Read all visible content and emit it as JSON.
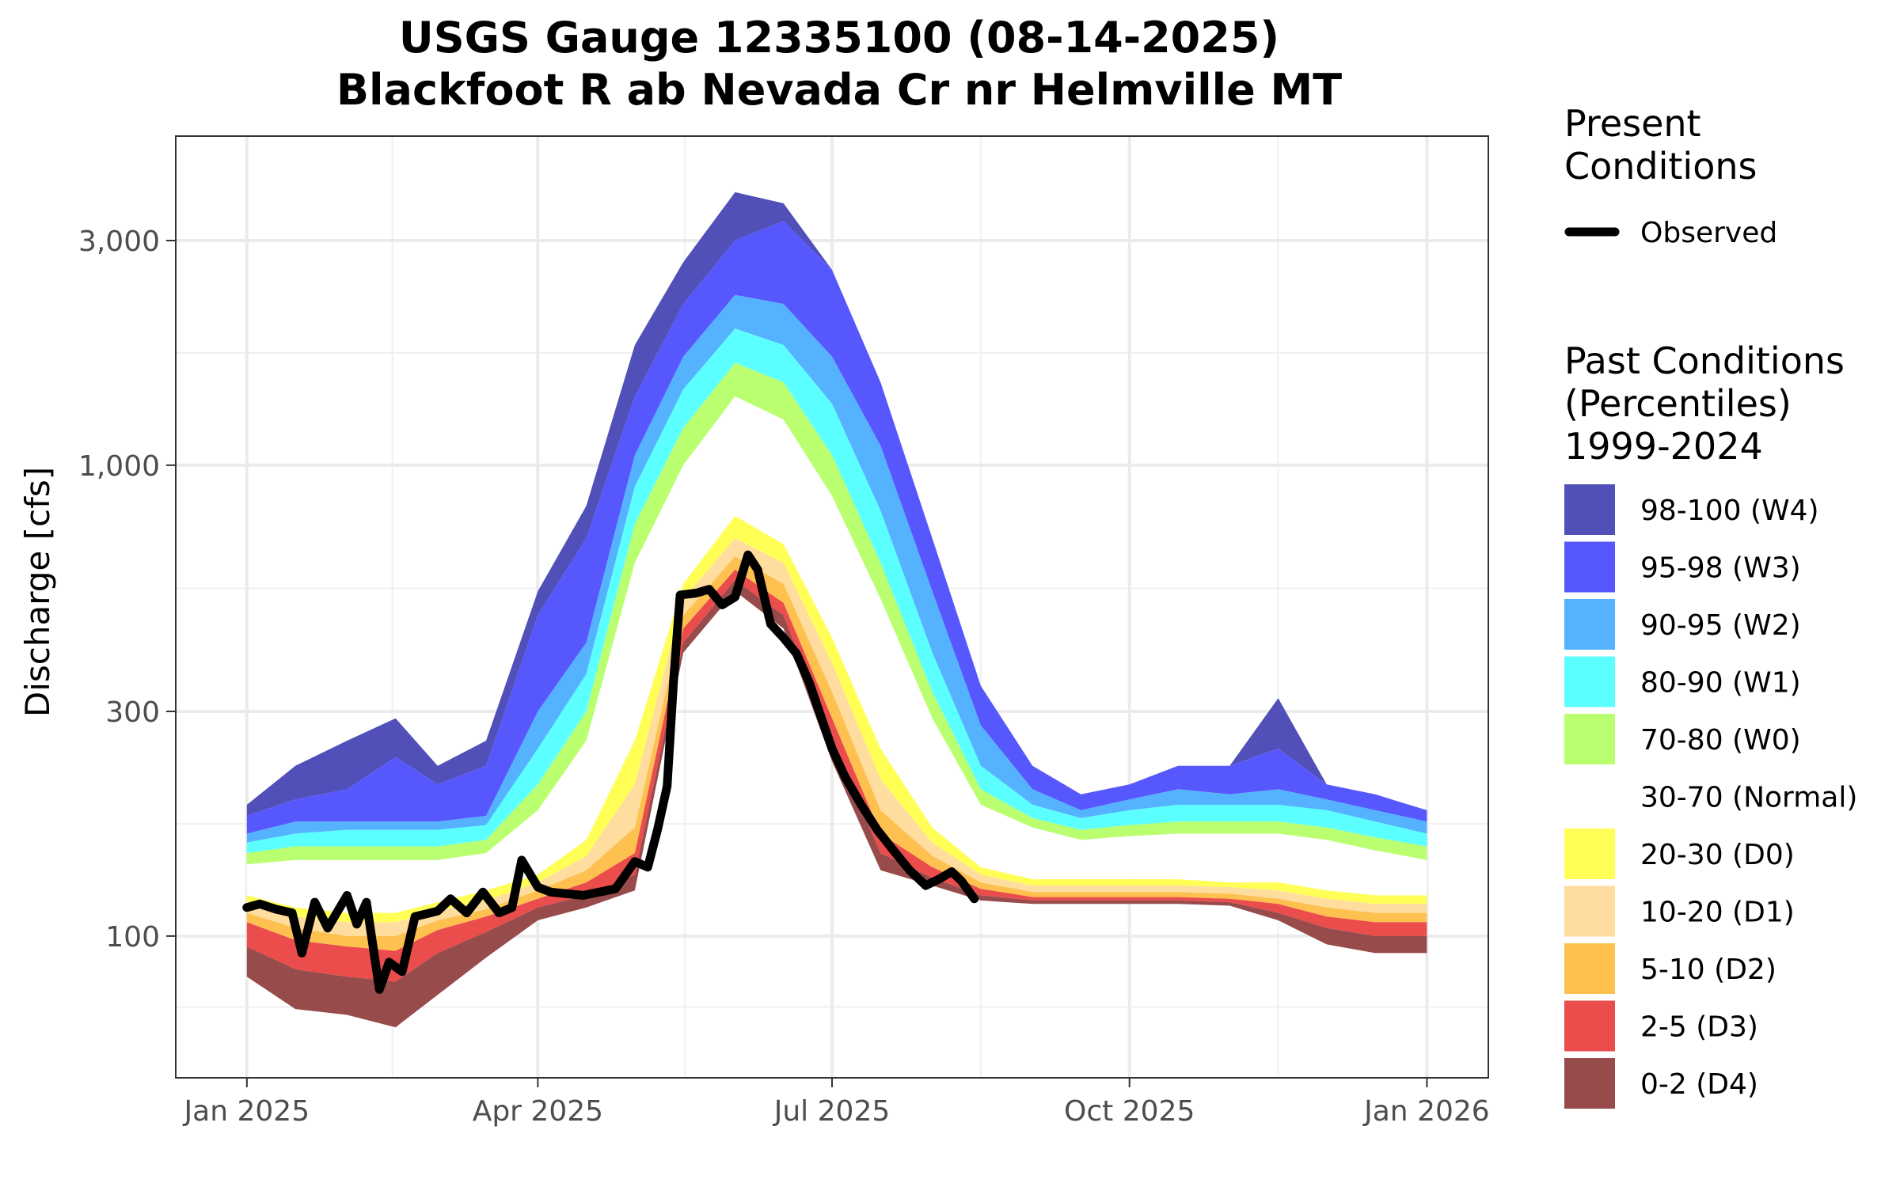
{
  "chart_data": {
    "type": "area",
    "title": "USGS Gauge 12335100 (08-14-2025)",
    "subtitle": "Blackfoot R ab Nevada Cr nr Helmville MT",
    "ylabel": "Discharge [cfs]",
    "xlabel": "",
    "y_scale": "log",
    "ylim": [
      50,
      5000
    ],
    "xlim": [
      "2024-12-10",
      "2026-01-20"
    ],
    "grid": true,
    "x_ticks": [
      {
        "date": "2025-01-01",
        "label": "Jan 2025"
      },
      {
        "date": "2025-04-01",
        "label": "Apr 2025"
      },
      {
        "date": "2025-07-01",
        "label": "Jul 2025"
      },
      {
        "date": "2025-10-01",
        "label": "Oct 2025"
      },
      {
        "date": "2026-01-01",
        "label": "Jan 2026"
      }
    ],
    "y_ticks": [
      {
        "value": 100,
        "label": "100"
      },
      {
        "value": 300,
        "label": "300"
      },
      {
        "value": 1000,
        "label": "1,000"
      },
      {
        "value": 3000,
        "label": "3,000"
      }
    ],
    "legend_placement": "right",
    "legend_present_title": "Present Conditions",
    "legend_past_title": "Past Conditions (Percentiles) 1999-2024",
    "observed": {
      "name": "Observed",
      "color": "#000000",
      "points": [
        [
          "2025-01-01",
          115
        ],
        [
          "2025-01-05",
          117
        ],
        [
          "2025-01-10",
          114
        ],
        [
          "2025-01-15",
          112
        ],
        [
          "2025-01-18",
          92
        ],
        [
          "2025-01-22",
          118
        ],
        [
          "2025-01-26",
          104
        ],
        [
          "2025-02-01",
          122
        ],
        [
          "2025-02-04",
          106
        ],
        [
          "2025-02-07",
          118
        ],
        [
          "2025-02-11",
          77
        ],
        [
          "2025-02-14",
          88
        ],
        [
          "2025-02-18",
          84
        ],
        [
          "2025-02-22",
          110
        ],
        [
          "2025-03-01",
          113
        ],
        [
          "2025-03-05",
          120
        ],
        [
          "2025-03-10",
          112
        ],
        [
          "2025-03-15",
          124
        ],
        [
          "2025-03-20",
          112
        ],
        [
          "2025-03-24",
          115
        ],
        [
          "2025-03-27",
          145
        ],
        [
          "2025-04-01",
          127
        ],
        [
          "2025-04-05",
          124
        ],
        [
          "2025-04-10",
          123
        ],
        [
          "2025-04-15",
          122
        ],
        [
          "2025-04-20",
          124
        ],
        [
          "2025-04-25",
          126
        ],
        [
          "2025-05-01",
          144
        ],
        [
          "2025-05-05",
          140
        ],
        [
          "2025-05-08",
          168
        ],
        [
          "2025-05-11",
          208
        ],
        [
          "2025-05-13",
          350
        ],
        [
          "2025-05-15",
          530
        ],
        [
          "2025-05-20",
          535
        ],
        [
          "2025-05-24",
          545
        ],
        [
          "2025-05-28",
          505
        ],
        [
          "2025-06-01",
          525
        ],
        [
          "2025-06-05",
          645
        ],
        [
          "2025-06-08",
          600
        ],
        [
          "2025-06-12",
          460
        ],
        [
          "2025-06-16",
          430
        ],
        [
          "2025-06-20",
          398
        ],
        [
          "2025-06-24",
          345
        ],
        [
          "2025-06-27",
          300
        ],
        [
          "2025-07-01",
          250
        ],
        [
          "2025-07-05",
          218
        ],
        [
          "2025-07-10",
          190
        ],
        [
          "2025-07-15",
          168
        ],
        [
          "2025-07-20",
          152
        ],
        [
          "2025-07-25",
          138
        ],
        [
          "2025-07-30",
          128
        ],
        [
          "2025-08-03",
          132
        ],
        [
          "2025-08-07",
          137
        ],
        [
          "2025-08-10",
          131
        ],
        [
          "2025-08-14",
          120
        ]
      ]
    },
    "percentile_band_dates": [
      "2025-01-01",
      "2025-01-16",
      "2025-02-01",
      "2025-02-16",
      "2025-03-01",
      "2025-03-16",
      "2025-04-01",
      "2025-04-16",
      "2025-05-01",
      "2025-05-16",
      "2025-06-01",
      "2025-06-16",
      "2025-07-01",
      "2025-07-16",
      "2025-08-01",
      "2025-08-16",
      "2025-09-01",
      "2025-09-16",
      "2025-10-01",
      "2025-10-16",
      "2025-11-01",
      "2025-11-16",
      "2025-12-01",
      "2025-12-16",
      "2026-01-01"
    ],
    "percentile_bands": [
      {
        "label": "98-100 (W4)",
        "color": "#5050B8",
        "lower": [
          180,
          195,
          205,
          240,
          210,
          230,
          480,
          700,
          1400,
          2200,
          3000,
          3300,
          2600,
          1500,
          700,
          340,
          230,
          200,
          210,
          230,
          230,
          250,
          210,
          200,
          185
        ],
        "upper": [
          190,
          230,
          260,
          290,
          230,
          260,
          540,
          820,
          1800,
          2700,
          3800,
          3600,
          2600,
          1500,
          700,
          340,
          230,
          200,
          210,
          230,
          230,
          320,
          210,
          200,
          185
        ]
      },
      {
        "label": "95-98 (W3)",
        "color": "#5757FE",
        "lower": [
          165,
          175,
          175,
          175,
          175,
          180,
          300,
          420,
          1050,
          1700,
          2300,
          2200,
          1700,
          1100,
          540,
          280,
          205,
          185,
          195,
          205,
          200,
          205,
          195,
          185,
          175
        ],
        "upper": [
          180,
          195,
          205,
          240,
          210,
          230,
          480,
          700,
          1400,
          2200,
          3000,
          3300,
          2600,
          1500,
          700,
          340,
          230,
          200,
          210,
          230,
          230,
          250,
          210,
          200,
          185
        ]
      },
      {
        "label": "90-95 (W2)",
        "color": "#55B2FE",
        "lower": [
          158,
          165,
          168,
          168,
          168,
          172,
          250,
          360,
          900,
          1450,
          1950,
          1800,
          1350,
          800,
          400,
          230,
          190,
          178,
          185,
          190,
          190,
          190,
          185,
          175,
          165
        ],
        "upper": [
          165,
          175,
          175,
          175,
          175,
          180,
          300,
          420,
          1050,
          1700,
          2300,
          2200,
          1700,
          1100,
          540,
          280,
          205,
          185,
          195,
          205,
          200,
          205,
          195,
          185,
          175
        ]
      },
      {
        "label": "80-90 (W1)",
        "color": "#5CFFFF",
        "lower": [
          150,
          155,
          155,
          155,
          155,
          160,
          210,
          300,
          750,
          1200,
          1650,
          1500,
          1050,
          620,
          330,
          205,
          178,
          168,
          172,
          175,
          175,
          175,
          170,
          162,
          155
        ],
        "upper": [
          158,
          165,
          168,
          168,
          168,
          172,
          250,
          360,
          900,
          1450,
          1950,
          1800,
          1350,
          800,
          400,
          230,
          190,
          178,
          185,
          190,
          190,
          190,
          185,
          175,
          165
        ]
      },
      {
        "label": "70-80 (W0)",
        "color": "#BAFF70",
        "lower": [
          142,
          145,
          145,
          145,
          145,
          150,
          185,
          260,
          620,
          1000,
          1400,
          1250,
          860,
          520,
          290,
          190,
          170,
          160,
          163,
          165,
          165,
          165,
          160,
          152,
          145
        ],
        "upper": [
          150,
          155,
          155,
          155,
          155,
          160,
          210,
          300,
          750,
          1200,
          1650,
          1500,
          1050,
          620,
          330,
          205,
          178,
          168,
          172,
          175,
          175,
          175,
          170,
          162,
          155
        ]
      },
      {
        "label": "30-70 (Normal)",
        "color": "#FFFFFF",
        "lower": [
          122,
          115,
          112,
          112,
          118,
          125,
          135,
          160,
          260,
          560,
          780,
          680,
          430,
          250,
          170,
          140,
          132,
          132,
          132,
          132,
          130,
          130,
          125,
          122,
          122
        ],
        "upper": [
          142,
          145,
          145,
          145,
          145,
          150,
          185,
          260,
          620,
          1000,
          1400,
          1250,
          860,
          520,
          290,
          190,
          170,
          160,
          163,
          165,
          165,
          165,
          160,
          152,
          145
        ]
      },
      {
        "label": "20-30 (D0)",
        "color": "#FFFF55",
        "lower": [
          117,
          110,
          107,
          107,
          113,
          119,
          130,
          148,
          210,
          520,
          700,
          620,
          380,
          215,
          158,
          135,
          128,
          128,
          128,
          128,
          127,
          125,
          120,
          117,
          117
        ],
        "upper": [
          122,
          115,
          112,
          112,
          118,
          125,
          135,
          160,
          260,
          560,
          780,
          680,
          430,
          250,
          170,
          140,
          132,
          132,
          132,
          132,
          130,
          130,
          125,
          122,
          122
        ]
      },
      {
        "label": "10-20 (D1)",
        "color": "#FFDD9E",
        "lower": [
          112,
          104,
          100,
          100,
          108,
          114,
          125,
          138,
          170,
          480,
          640,
          560,
          330,
          185,
          148,
          130,
          124,
          124,
          124,
          124,
          123,
          120,
          115,
          112,
          112
        ],
        "upper": [
          117,
          110,
          107,
          107,
          113,
          119,
          130,
          148,
          210,
          520,
          700,
          620,
          380,
          215,
          158,
          135,
          128,
          128,
          128,
          128,
          127,
          125,
          120,
          117,
          117
        ]
      },
      {
        "label": "5-10 (D2)",
        "color": "#FEC14F",
        "lower": [
          107,
          98,
          95,
          93,
          103,
          110,
          120,
          130,
          150,
          450,
          600,
          510,
          290,
          165,
          140,
          126,
          121,
          121,
          121,
          121,
          120,
          117,
          110,
          107,
          107
        ],
        "upper": [
          112,
          104,
          100,
          100,
          108,
          114,
          125,
          138,
          170,
          480,
          640,
          560,
          330,
          185,
          148,
          130,
          124,
          124,
          124,
          124,
          123,
          120,
          115,
          112,
          112
        ]
      },
      {
        "label": "2-5 (D3)",
        "color": "#EB4C4C",
        "lower": [
          95,
          85,
          82,
          80,
          92,
          102,
          115,
          122,
          135,
          420,
          570,
          480,
          260,
          150,
          133,
          122,
          119,
          119,
          119,
          119,
          118,
          112,
          104,
          100,
          100
        ],
        "upper": [
          107,
          98,
          95,
          93,
          103,
          110,
          120,
          130,
          150,
          450,
          600,
          510,
          290,
          165,
          140,
          126,
          121,
          121,
          121,
          121,
          120,
          117,
          110,
          107,
          107
        ]
      },
      {
        "label": "0-2 (D4)",
        "color": "#984B4B",
        "lower": [
          82,
          70,
          68,
          64,
          75,
          90,
          108,
          115,
          125,
          400,
          540,
          450,
          235,
          138,
          128,
          119,
          117,
          117,
          117,
          117,
          116,
          108,
          96,
          92,
          92
        ],
        "upper": [
          95,
          85,
          82,
          80,
          92,
          102,
          115,
          122,
          135,
          420,
          570,
          480,
          260,
          150,
          133,
          122,
          119,
          119,
          119,
          119,
          118,
          112,
          104,
          100,
          100
        ]
      }
    ]
  }
}
